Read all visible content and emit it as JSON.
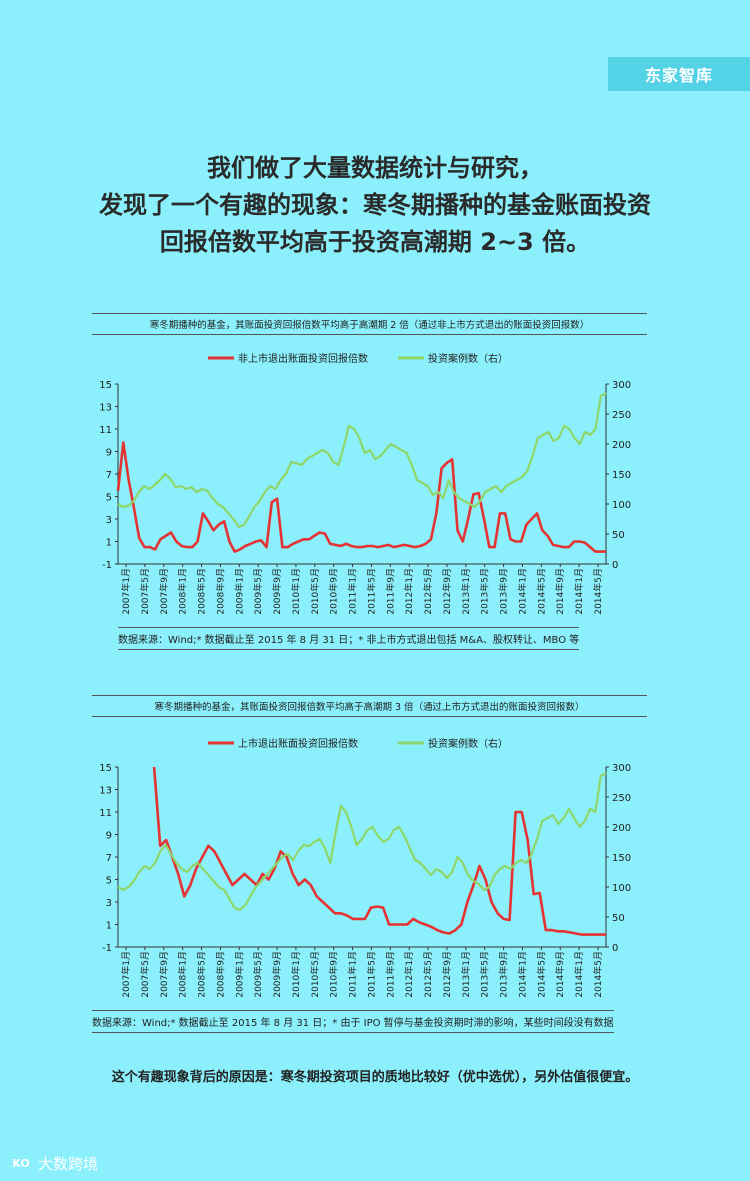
{
  "brand": {
    "tag": "东家智库"
  },
  "headline": {
    "line1": "我们做了大量数据统计与研究，",
    "line2": "发现了一个有趣的现象：寒冬期播种的基金账面投资",
    "line3": "回报倍数平均高于投资高潮期 2~3 倍。"
  },
  "colors": {
    "background": "#8bf0fb",
    "red_series": "#e53232",
    "green_series": "#8fd66a",
    "brand_tag": "#54d3e6"
  },
  "chart_data": [
    {
      "type": "line",
      "title": "寒冬期播种的基金，其账面投资回报倍数平均高于高潮期 2 倍（通过非上市方式退出的账面投资回报数）",
      "source": "数据来源：Wind;* 数据截止至 2015 年 8 月 31 日；* 非上市方式退出包括 M&A、股权转让、MBO 等",
      "x_tick_labels": [
        "2007年1月",
        "2007年5月",
        "2007年9月",
        "2008年1月",
        "2008年5月",
        "2008年9月",
        "2009年1月",
        "2009年5月",
        "2009年9月",
        "2010年1月",
        "2010年5月",
        "2010年9月",
        "2011年1月",
        "2011年5月",
        "2011年9月",
        "2012年1月",
        "2012年5月",
        "2012年9月",
        "2013年1月",
        "2013年5月",
        "2013年9月",
        "2014年1月",
        "2014年5月",
        "2014年9月",
        "2014年1月",
        "2014年5月"
      ],
      "y_left": {
        "ticks": [
          -1,
          1,
          3,
          5,
          7,
          9,
          11,
          13,
          15
        ],
        "range": [
          -1,
          15
        ]
      },
      "y_right": {
        "ticks": [
          0,
          50,
          100,
          150,
          200,
          250,
          300
        ],
        "range": [
          0,
          300
        ]
      },
      "series": [
        {
          "name": "非上市退出账面投资回报倍数",
          "axis": "left",
          "color": "#e53232",
          "values": [
            5.5,
            9.8,
            6.5,
            4,
            1.3,
            0.5,
            0.5,
            0.3,
            1.2,
            1.5,
            1.8,
            1,
            0.6,
            0.5,
            0.5,
            1,
            3.5,
            2.8,
            2,
            2.5,
            2.8,
            1,
            0.1,
            0.3,
            0.6,
            0.8,
            1,
            1.1,
            0.5,
            4.5,
            4.8,
            0.5,
            0.5,
            0.8,
            1,
            1.2,
            1.2,
            1.5,
            1.8,
            1.7,
            0.8,
            0.7,
            0.6,
            0.8,
            0.6,
            0.5,
            0.5,
            0.6,
            0.6,
            0.5,
            0.6,
            0.7,
            0.5,
            0.6,
            0.7,
            0.6,
            0.5,
            0.6,
            0.8,
            1.2,
            3.5,
            7.5,
            8,
            8.3,
            2,
            1,
            3,
            5.2,
            5.3,
            3,
            0.5,
            0.5,
            3.5,
            3.5,
            1.2,
            1,
            1,
            2.5,
            3,
            3.5,
            2,
            1.5,
            0.7,
            0.6,
            0.5,
            0.5,
            1,
            1,
            0.9,
            0.5,
            0.1,
            0.1,
            0.1
          ]
        },
        {
          "name": "投资案例数（右）",
          "axis": "right",
          "color": "#8fd66a",
          "values": [
            100,
            95,
            97,
            105,
            120,
            130,
            125,
            132,
            140,
            150,
            142,
            128,
            130,
            125,
            128,
            120,
            125,
            122,
            110,
            100,
            95,
            85,
            75,
            62,
            65,
            80,
            95,
            105,
            120,
            130,
            125,
            140,
            150,
            170,
            168,
            165,
            175,
            180,
            185,
            190,
            185,
            170,
            165,
            195,
            230,
            225,
            210,
            185,
            190,
            175,
            180,
            190,
            200,
            195,
            190,
            185,
            165,
            140,
            135,
            130,
            115,
            120,
            110,
            140,
            120,
            110,
            105,
            100,
            95,
            105,
            120,
            125,
            130,
            120,
            130,
            135,
            140,
            145,
            155,
            180,
            210,
            215,
            220,
            205,
            210,
            230,
            225,
            210,
            200,
            220,
            215,
            225,
            280,
            285
          ]
        }
      ]
    },
    {
      "type": "line",
      "title": "寒冬期播种的基金，其账面投资回报倍数平均高于高潮期 3 倍（通过上市方式退出的账面投资回报数）",
      "source": "数据来源：Wind;* 数据截止至 2015 年 8 月 31 日；* 由于 IPO 暂停与基金投资期时滞的影响，某些时间段没有数据",
      "x_tick_labels": [
        "2007年1月",
        "2007年5月",
        "2007年9月",
        "2008年1月",
        "2008年5月",
        "2008年9月",
        "2009年1月",
        "2009年5月",
        "2009年9月",
        "2010年1月",
        "2010年5月",
        "2010年9月",
        "2011年1月",
        "2011年5月",
        "2011年9月",
        "2012年1月",
        "2012年5月",
        "2012年9月",
        "2013年1月",
        "2013年5月",
        "2013年9月",
        "2014年1月",
        "2014年5月",
        "2014年9月",
        "2014年1月",
        "2014年5月"
      ],
      "y_left": {
        "ticks": [
          -1,
          1,
          3,
          5,
          7,
          9,
          11,
          13,
          15
        ],
        "range": [
          -1,
          15
        ]
      },
      "y_right": {
        "ticks": [
          0,
          50,
          100,
          150,
          200,
          250,
          300
        ],
        "range": [
          0,
          300
        ]
      },
      "series": [
        {
          "name": "上市退出账面投资回报倍数",
          "axis": "left",
          "color": "#e53232",
          "values": [
            null,
            null,
            null,
            null,
            null,
            null,
            15,
            8,
            8.5,
            7,
            5.5,
            3.5,
            4.5,
            6,
            7,
            8,
            7.5,
            6.5,
            5.5,
            4.5,
            5,
            5.5,
            5,
            4.5,
            5.5,
            5,
            6,
            7.5,
            7,
            5.5,
            4.5,
            5,
            4.5,
            3.5,
            3,
            2.5,
            2,
            2,
            1.8,
            1.5,
            1.5,
            1.5,
            2.5,
            2.6,
            2.5,
            1,
            1,
            1,
            1,
            1.5,
            1.2,
            1,
            0.8,
            0.5,
            0.3,
            0.2,
            0.5,
            1,
            3,
            4.5,
            6.2,
            5,
            3,
            2,
            1.5,
            1.4,
            11,
            11,
            8.5,
            3.7,
            3.8,
            0.5,
            0.5,
            0.4,
            0.4,
            0.3,
            0.2,
            0.1,
            0.1,
            0.1,
            0.1,
            0.1
          ]
        },
        {
          "name": "投资案例数（右）",
          "axis": "right",
          "color": "#8fd66a",
          "values": [
            100,
            95,
            100,
            110,
            125,
            135,
            130,
            140,
            160,
            170,
            155,
            140,
            130,
            125,
            135,
            140,
            130,
            120,
            110,
            100,
            95,
            80,
            65,
            62,
            70,
            85,
            100,
            110,
            120,
            130,
            140,
            150,
            155,
            145,
            160,
            170,
            168,
            175,
            180,
            165,
            140,
            190,
            235,
            225,
            200,
            170,
            180,
            195,
            200,
            185,
            175,
            180,
            195,
            200,
            185,
            165,
            145,
            140,
            130,
            120,
            130,
            125,
            115,
            125,
            150,
            140,
            120,
            110,
            105,
            95,
            100,
            120,
            130,
            135,
            130,
            140,
            145,
            140,
            155,
            180,
            210,
            215,
            220,
            205,
            215,
            230,
            215,
            200,
            210,
            230,
            225,
            285,
            290
          ]
        }
      ]
    }
  ],
  "bottom_note": "这个有趣现象背后的原因是：寒冬期投资项目的质地比较好（优中选优），另外估值很便宜。",
  "watermark": {
    "logo": "KO",
    "text": "大数跨境"
  }
}
